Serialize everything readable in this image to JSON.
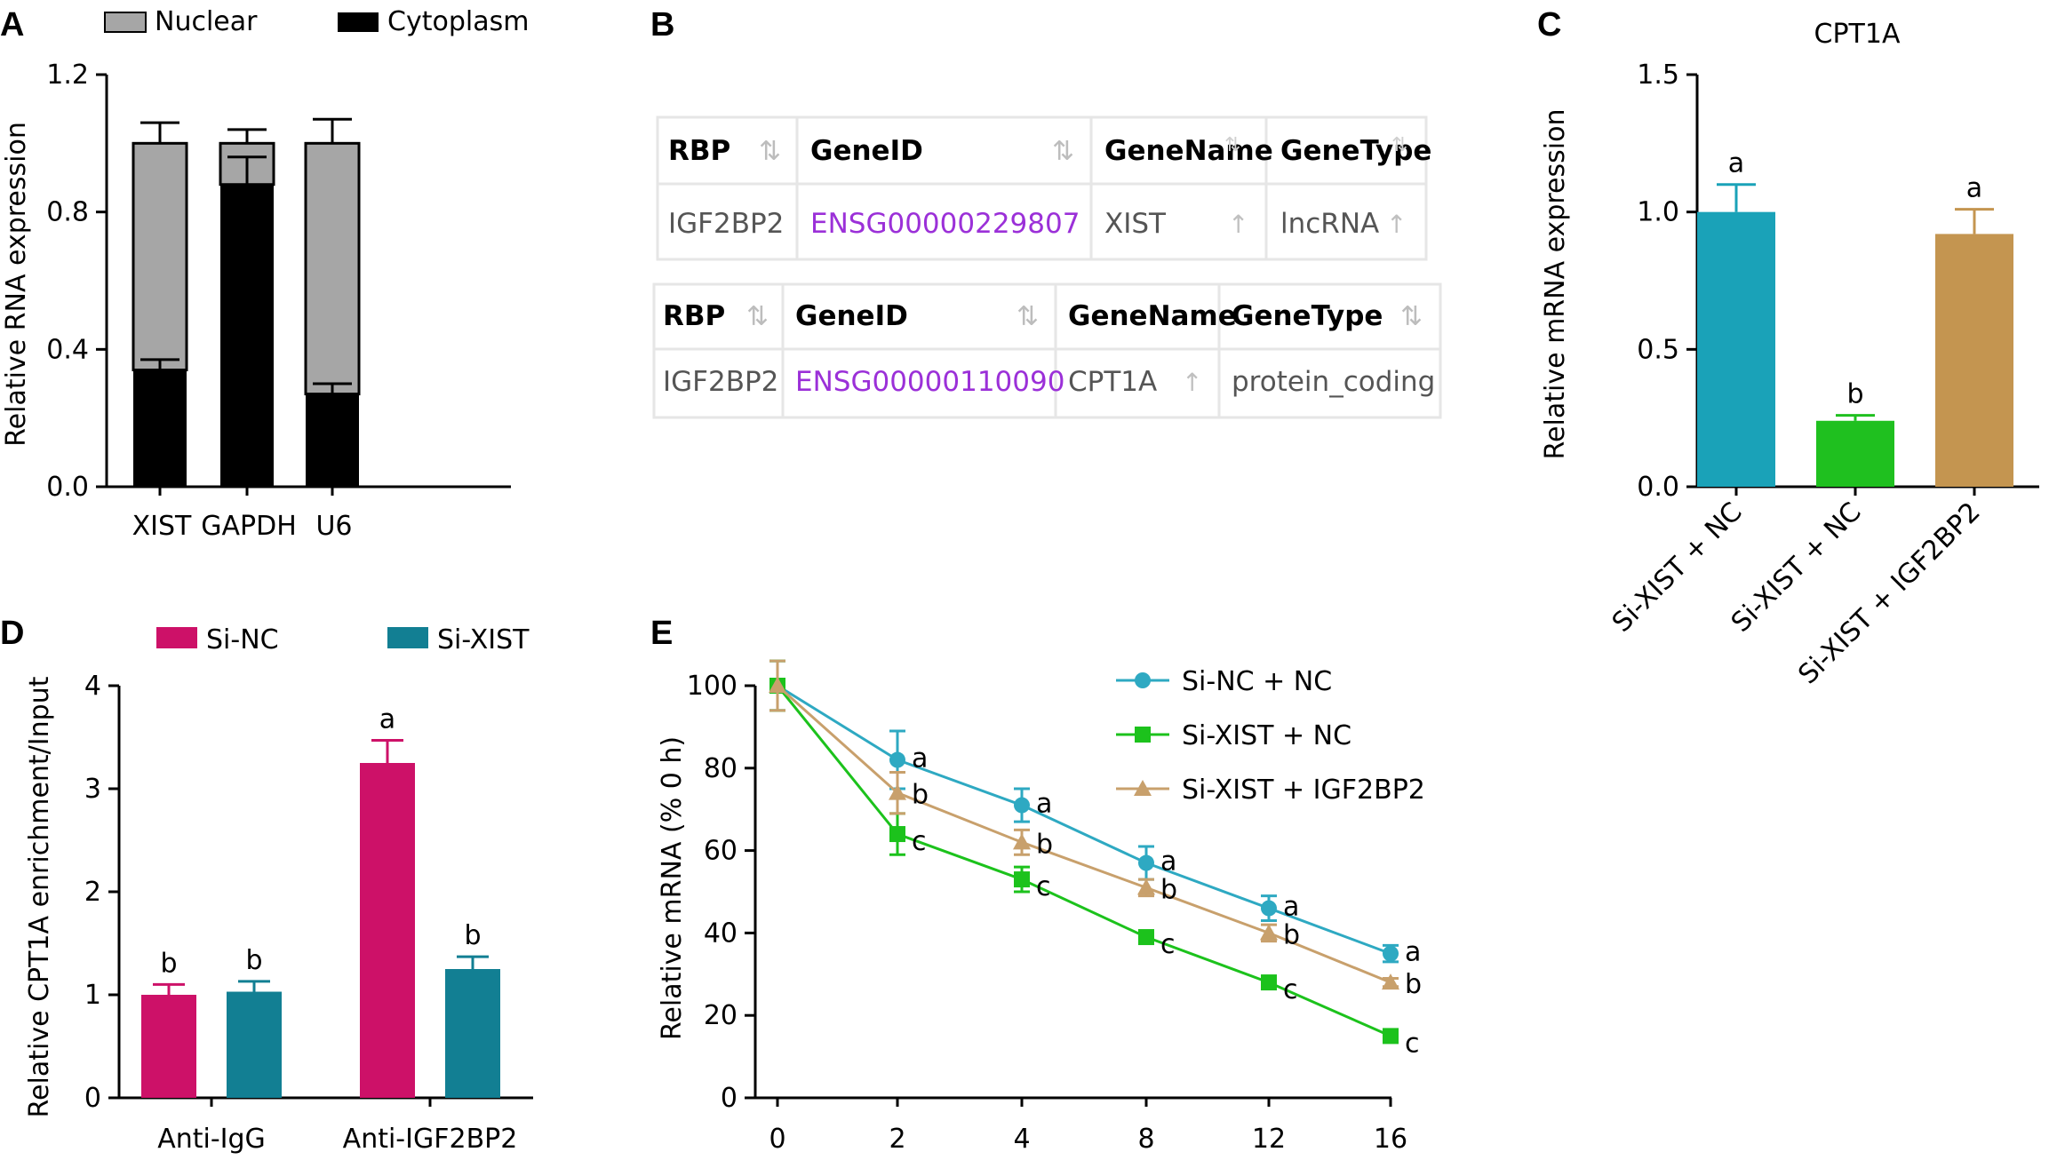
{
  "panels": {
    "A": {
      "letter": "A",
      "legend": [
        "Nuclear",
        "Cytoplasm"
      ],
      "ylabel": "Relative RNA expression",
      "yticks": [
        "0.0",
        "0.4",
        "0.8",
        "1.2"
      ]
    },
    "B": {
      "letter": "B",
      "tables": [
        {
          "headers": [
            "RBP",
            "GeneID",
            "GeneName",
            "GeneType"
          ],
          "row": [
            "IGF2BP2",
            "ENSG00000229807",
            "XIST",
            "lncRNA"
          ]
        },
        {
          "headers": [
            "RBP",
            "GeneID",
            "GeneName",
            "GeneType"
          ],
          "row": [
            "IGF2BP2",
            "ENSG00000110090",
            "CPT1A",
            "protein_coding"
          ]
        }
      ],
      "sort_glyph": "⇅",
      "up_glyph": "↑"
    },
    "C": {
      "letter": "C",
      "title": "CPT1A",
      "ylabel": "Relative mRNA expression",
      "yticks": [
        "0.0",
        "0.5",
        "1.0",
        "1.5"
      ]
    },
    "D": {
      "letter": "D",
      "legend": [
        "Si-NC",
        "Si-XIST"
      ],
      "ylabel": "Relative CPT1A enrichment/Input",
      "yticks": [
        "0",
        "1",
        "2",
        "3",
        "4"
      ]
    },
    "E": {
      "letter": "E",
      "ylabel": "Relative mRNA (% 0 h)",
      "yticks": [
        "0",
        "20",
        "40",
        "60",
        "80",
        "100"
      ],
      "xticks": [
        "0",
        "2",
        "4",
        "8",
        "12",
        "16"
      ]
    }
  },
  "colors": {
    "nuclear": "#a6a6a6",
    "cytoplasm": "#000000",
    "teal_c": "#1aa2b8",
    "green": "#1fc01f",
    "tan": "#c49550",
    "magenta": "#cd1168",
    "teal_d": "#127f93",
    "line_teal": "#2ea9c2",
    "line_green": "#1cc21c",
    "line_tan": "#c8a06c",
    "link_purple": "#9b30d8"
  },
  "chart_data": [
    {
      "panel": "A",
      "type": "bar",
      "stacked": true,
      "categories": [
        "XIST",
        "GAPDH",
        "U6"
      ],
      "series": [
        {
          "name": "Cytoplasm",
          "values": [
            0.34,
            0.88,
            0.27
          ],
          "errors": [
            0.03,
            0.08,
            0.03
          ]
        },
        {
          "name": "Nuclear",
          "values": [
            0.66,
            0.12,
            0.73
          ],
          "errors": [
            0.06,
            0.04,
            0.07
          ]
        }
      ],
      "ylabel": "Relative RNA expression",
      "ylim": [
        0,
        1.2
      ],
      "yticks": [
        0.0,
        0.4,
        0.8,
        1.2
      ],
      "legend_position": "top"
    },
    {
      "panel": "C",
      "type": "bar",
      "title": "CPT1A",
      "categories": [
        "Si-XIST + NC",
        "Si-XIST + NC",
        "Si-XIST + IGF2BP2"
      ],
      "values": [
        1.0,
        0.24,
        0.92
      ],
      "errors": [
        0.1,
        0.02,
        0.09
      ],
      "annotations": [
        "a",
        "b",
        "a"
      ],
      "ylabel": "Relative mRNA expression",
      "ylim": [
        0,
        1.5
      ],
      "yticks": [
        0.0,
        0.5,
        1.0,
        1.5
      ]
    },
    {
      "panel": "D",
      "type": "bar",
      "categories": [
        "Anti-IgG",
        "Anti-IGF2BP2"
      ],
      "series": [
        {
          "name": "Si-NC",
          "values": [
            1.0,
            3.25
          ],
          "errors": [
            0.1,
            0.22
          ],
          "annotations": [
            "b",
            "a"
          ]
        },
        {
          "name": "Si-XIST",
          "values": [
            1.03,
            1.25
          ],
          "errors": [
            0.1,
            0.12
          ],
          "annotations": [
            "b",
            "b"
          ]
        }
      ],
      "ylabel": "Relative CPT1A enrichment/Input",
      "ylim": [
        0,
        4
      ],
      "yticks": [
        0,
        1,
        2,
        3,
        4
      ],
      "legend_position": "top"
    },
    {
      "panel": "E",
      "type": "line",
      "x": [
        0,
        2,
        4,
        8,
        12,
        16
      ],
      "xtick_labels": [
        "0",
        "2",
        "4",
        "8",
        "12",
        "16"
      ],
      "series": [
        {
          "name": "Si-NC + NC",
          "marker": "circle",
          "values": [
            100,
            82,
            71,
            57,
            46,
            35
          ],
          "errors": [
            6,
            7,
            4,
            4,
            3,
            2
          ],
          "annotations": [
            "",
            "a",
            "a",
            "a",
            "a",
            "a"
          ]
        },
        {
          "name": "Si-XIST + NC",
          "marker": "square",
          "values": [
            100,
            64,
            53,
            39,
            28,
            15
          ],
          "errors": [
            6,
            5,
            3,
            1,
            1,
            1
          ],
          "annotations": [
            "",
            "c",
            "c",
            "c",
            "c",
            "c"
          ]
        },
        {
          "name": "Si-XIST + IGF2BP2",
          "marker": "triangle",
          "values": [
            100,
            74,
            62,
            51,
            40,
            28
          ],
          "errors": [
            6,
            5,
            3,
            2,
            2,
            1
          ],
          "annotations": [
            "",
            "b",
            "b",
            "b",
            "b",
            "b"
          ]
        }
      ],
      "ylabel": "Relative mRNA (% 0 h)",
      "ylim": [
        0,
        100
      ],
      "yticks": [
        0,
        20,
        40,
        60,
        80,
        100
      ],
      "legend_position": "top-right"
    }
  ]
}
